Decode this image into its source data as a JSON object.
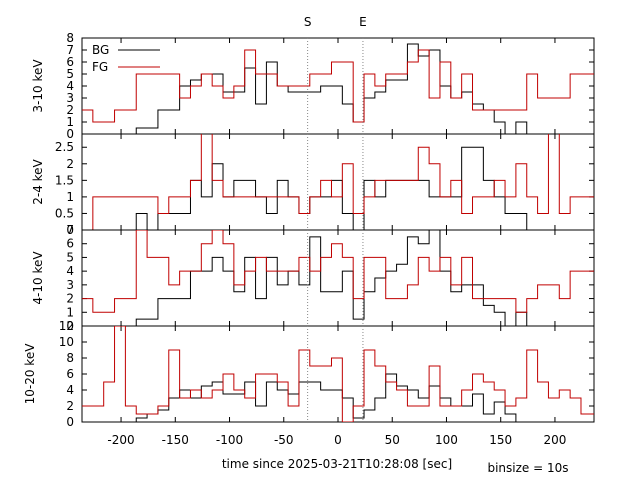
{
  "xlabel": "time since 2025-03-21T10:28:08 [sec]",
  "binsize_label": "binsize = 10s",
  "markers": [
    {
      "label": "S",
      "x": -28
    },
    {
      "label": "E",
      "x": 23
    }
  ],
  "legend": {
    "bg": "BG",
    "fg": "FG"
  },
  "colors": {
    "bg": "#000000",
    "fg": "#c00000",
    "marker": "#888888"
  },
  "xlim": [
    -236,
    236
  ],
  "xticks": [
    -200,
    -150,
    -100,
    -50,
    0,
    50,
    100,
    150,
    200
  ],
  "chart_data": [
    {
      "type": "line",
      "ylabel": "3-10 keV",
      "ylim": [
        0,
        8
      ],
      "yticks": [
        0,
        1,
        2,
        3,
        4,
        5,
        6,
        7,
        8
      ],
      "x_edges": [
        -236,
        -226,
        -216,
        -206,
        -196,
        -186,
        -176,
        -166,
        -156,
        -146,
        -136,
        -126,
        -116,
        -106,
        -96,
        -86,
        -76,
        -66,
        -56,
        -46,
        -36,
        -26,
        -16,
        -6,
        4,
        14,
        24,
        34,
        44,
        54,
        64,
        74,
        84,
        94,
        104,
        114,
        124,
        134,
        144,
        154,
        164,
        174,
        184,
        194,
        204,
        214,
        224,
        236
      ],
      "series": [
        {
          "name": "BG",
          "values": [
            0,
            0,
            0,
            0,
            0,
            0.5,
            0.5,
            2,
            2,
            4,
            4.5,
            5,
            5,
            3.5,
            3.5,
            5.5,
            2.5,
            6,
            4,
            3.5,
            3.5,
            3.5,
            4,
            4,
            2.5,
            1,
            3,
            3.5,
            4.5,
            4.5,
            7.5,
            6.5,
            7,
            4,
            3,
            3.5,
            2.5,
            2,
            1,
            0,
            1,
            0,
            0,
            0,
            0,
            0,
            0
          ]
        },
        {
          "name": "FG",
          "values": [
            2,
            1,
            1,
            2,
            2,
            5,
            5,
            5,
            5,
            3,
            4,
            5,
            4,
            3,
            4,
            7,
            5,
            5,
            4,
            4,
            4,
            5,
            5,
            6,
            6,
            1,
            5,
            4,
            5,
            5,
            6,
            7,
            3,
            6,
            3,
            5,
            2,
            2,
            2,
            2,
            2,
            5,
            3,
            3,
            3,
            5,
            5
          ]
        }
      ]
    },
    {
      "type": "line",
      "ylabel": "2-4 keV",
      "ylim": [
        0,
        2.9
      ],
      "yticks": [
        0,
        0.5,
        1,
        1.5,
        2,
        2.5
      ],
      "x_edges": [
        -236,
        -226,
        -216,
        -206,
        -196,
        -186,
        -176,
        -166,
        -156,
        -146,
        -136,
        -126,
        -116,
        -106,
        -96,
        -86,
        -76,
        -66,
        -56,
        -46,
        -36,
        -26,
        -16,
        -6,
        4,
        14,
        24,
        34,
        44,
        54,
        64,
        74,
        84,
        94,
        104,
        114,
        124,
        134,
        144,
        154,
        164,
        174,
        184,
        194,
        204,
        214,
        224,
        236
      ],
      "series": [
        {
          "name": "BG",
          "values": [
            0,
            0,
            0,
            0,
            0,
            0.5,
            0,
            0.5,
            0.5,
            0.5,
            1.5,
            1,
            2,
            1,
            1.5,
            1.5,
            1,
            0.5,
            1.5,
            1,
            0.5,
            1,
            1,
            1.5,
            0.5,
            0,
            1.5,
            1,
            1.5,
            1.5,
            1.5,
            1.5,
            1,
            1,
            1,
            2.5,
            2.5,
            1.5,
            1,
            0.5,
            0.5,
            0,
            0,
            0,
            0,
            0,
            0
          ]
        },
        {
          "name": "FG",
          "values": [
            0,
            1,
            1,
            1,
            1,
            1,
            1,
            0.5,
            1,
            1,
            1.5,
            3,
            1.5,
            1,
            1,
            1,
            1,
            1,
            1,
            1,
            0.5,
            1,
            1.5,
            1,
            2,
            0.5,
            1,
            1.5,
            1.5,
            1.5,
            1.5,
            2.5,
            2,
            1,
            1.5,
            0.5,
            1,
            1,
            1.5,
            1,
            2,
            1,
            0.5,
            3,
            0.5,
            1,
            1
          ]
        }
      ]
    },
    {
      "type": "line",
      "ylabel": "4-10 keV",
      "ylim": [
        0,
        7
      ],
      "yticks": [
        0,
        1,
        2,
        3,
        4,
        5,
        6,
        7
      ],
      "x_edges": [
        -236,
        -226,
        -216,
        -206,
        -196,
        -186,
        -176,
        -166,
        -156,
        -146,
        -136,
        -126,
        -116,
        -106,
        -96,
        -86,
        -76,
        -66,
        -56,
        -46,
        -36,
        -26,
        -16,
        -6,
        4,
        14,
        24,
        34,
        44,
        54,
        64,
        74,
        84,
        94,
        104,
        114,
        124,
        134,
        144,
        154,
        164,
        174,
        184,
        194,
        204,
        214,
        224,
        236
      ],
      "series": [
        {
          "name": "BG",
          "values": [
            0,
            0,
            0,
            0,
            0,
            0.5,
            0.5,
            2,
            2,
            2,
            4,
            4,
            5,
            4,
            2.5,
            5,
            2,
            5,
            3,
            4,
            3,
            6.5,
            2.5,
            2.5,
            4,
            0.5,
            2.5,
            3.5,
            4,
            4.5,
            6.5,
            6,
            7,
            4,
            2.5,
            3,
            3,
            1.5,
            1,
            0,
            1,
            0,
            0,
            0,
            0,
            0,
            0
          ]
        },
        {
          "name": "FG",
          "values": [
            2,
            1,
            1,
            2,
            2,
            7,
            5,
            5,
            3,
            4,
            4,
            6,
            7,
            6,
            3,
            4,
            5,
            4,
            4,
            4,
            5,
            4,
            5,
            6,
            5,
            2,
            5,
            5,
            2,
            2,
            3,
            5,
            4,
            5,
            3,
            5,
            2,
            2,
            2,
            2,
            1,
            2,
            3,
            3,
            2,
            4,
            4
          ]
        }
      ]
    },
    {
      "type": "line",
      "ylabel": "10-20 keV",
      "ylim": [
        0,
        12
      ],
      "yticks": [
        0,
        2,
        4,
        6,
        8,
        10,
        12
      ],
      "x_edges": [
        -236,
        -226,
        -216,
        -206,
        -196,
        -186,
        -176,
        -166,
        -156,
        -146,
        -136,
        -126,
        -116,
        -106,
        -96,
        -86,
        -76,
        -66,
        -56,
        -46,
        -36,
        -26,
        -16,
        -6,
        4,
        14,
        24,
        34,
        44,
        54,
        64,
        74,
        84,
        94,
        104,
        114,
        124,
        134,
        144,
        154,
        164,
        174,
        184,
        194,
        204,
        214,
        224,
        236
      ],
      "series": [
        {
          "name": "BG",
          "values": [
            0,
            0,
            0,
            0,
            0,
            0.5,
            1,
            1.5,
            3,
            4,
            3,
            4.5,
            5,
            3.5,
            3.5,
            5,
            2,
            5,
            4,
            3.5,
            5,
            5,
            4,
            4,
            3,
            0.5,
            1.5,
            3,
            6,
            4.5,
            4,
            3,
            4.5,
            3,
            2,
            2,
            3.5,
            1,
            2.5,
            1,
            0,
            0,
            0,
            0,
            0,
            0,
            0
          ]
        },
        {
          "name": "FG",
          "values": [
            2,
            2,
            5,
            12,
            2,
            1,
            1,
            2,
            9,
            3,
            4,
            3,
            4,
            6,
            4,
            3,
            6,
            6,
            5,
            2,
            9,
            7,
            7,
            8,
            0,
            2,
            9,
            7,
            5,
            4,
            2,
            2,
            7,
            2,
            2,
            4,
            6,
            5,
            4,
            2,
            3,
            9,
            5,
            3,
            4,
            3,
            1
          ]
        }
      ]
    }
  ]
}
